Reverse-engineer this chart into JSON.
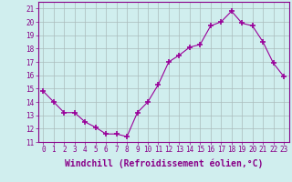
{
  "x": [
    0,
    1,
    2,
    3,
    4,
    5,
    6,
    7,
    8,
    9,
    10,
    11,
    12,
    13,
    14,
    15,
    16,
    17,
    18,
    19,
    20,
    21,
    22,
    23
  ],
  "y": [
    14.8,
    14.0,
    13.2,
    13.2,
    12.5,
    12.1,
    11.6,
    11.6,
    11.4,
    13.2,
    14.0,
    15.3,
    17.0,
    17.5,
    18.1,
    18.3,
    19.7,
    20.0,
    20.8,
    19.9,
    19.7,
    18.5,
    16.9,
    15.9
  ],
  "line_color": "#990099",
  "marker": "+",
  "marker_size": 4,
  "bg_color": "#d0eeee",
  "grid_color": "#aabbbb",
  "xlabel": "Windchill (Refroidissement éolien,°C)",
  "xlim": [
    -0.5,
    23.5
  ],
  "ylim": [
    11,
    21.5
  ],
  "yticks": [
    11,
    12,
    13,
    14,
    15,
    16,
    17,
    18,
    19,
    20,
    21
  ],
  "xticks": [
    0,
    1,
    2,
    3,
    4,
    5,
    6,
    7,
    8,
    9,
    10,
    11,
    12,
    13,
    14,
    15,
    16,
    17,
    18,
    19,
    20,
    21,
    22,
    23
  ],
  "tick_fontsize": 5.5,
  "xlabel_fontsize": 7.0
}
